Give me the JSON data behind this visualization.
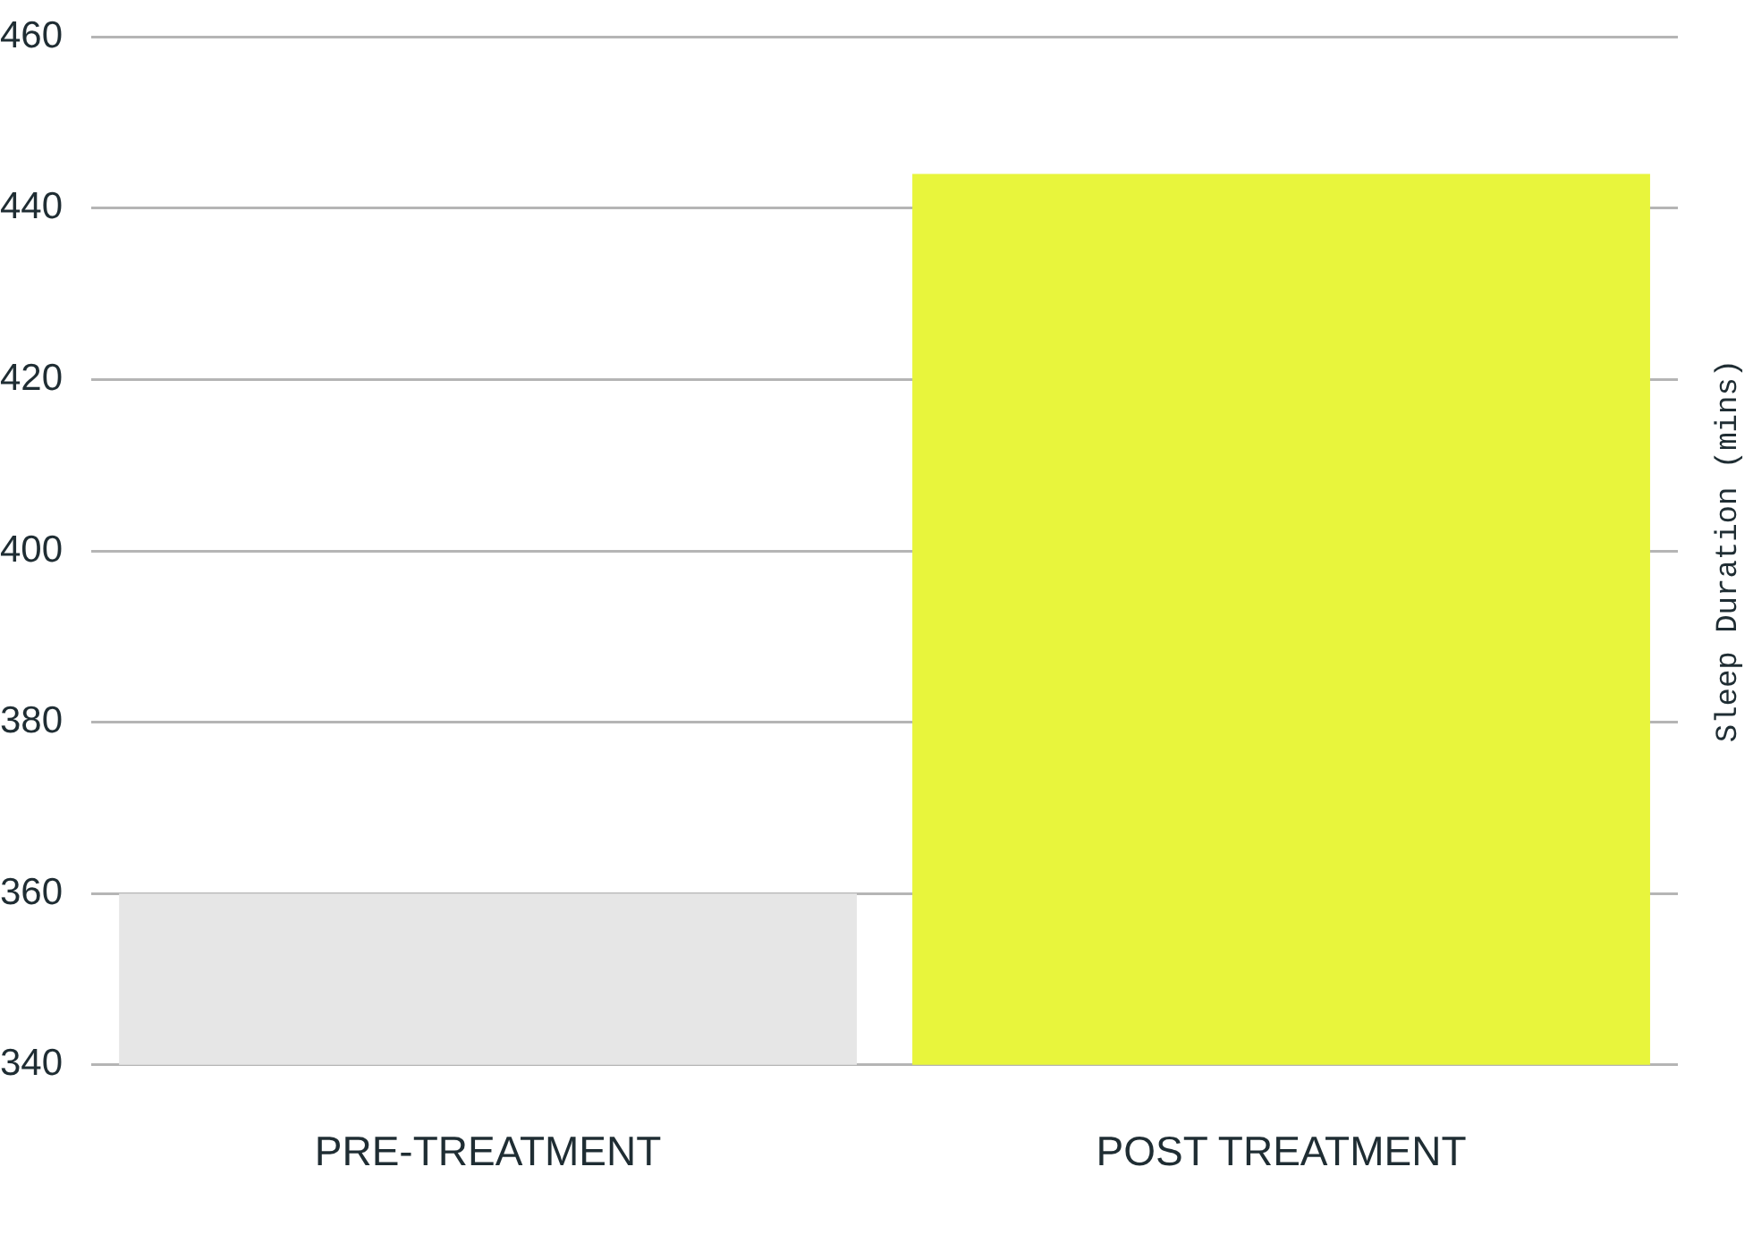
{
  "chart_data": {
    "type": "bar",
    "ylabel": "Sleep Duration (mins)",
    "categories": [
      "PRE-TREATMENT",
      "POST TREATMENT"
    ],
    "values": [
      360,
      444
    ],
    "colors": [
      "#e6e6e6",
      "#e8f53c"
    ],
    "ylim": [
      340,
      460
    ],
    "yticks": [
      340,
      360,
      380,
      400,
      420,
      440,
      460
    ],
    "grid": "y",
    "legend": false
  }
}
